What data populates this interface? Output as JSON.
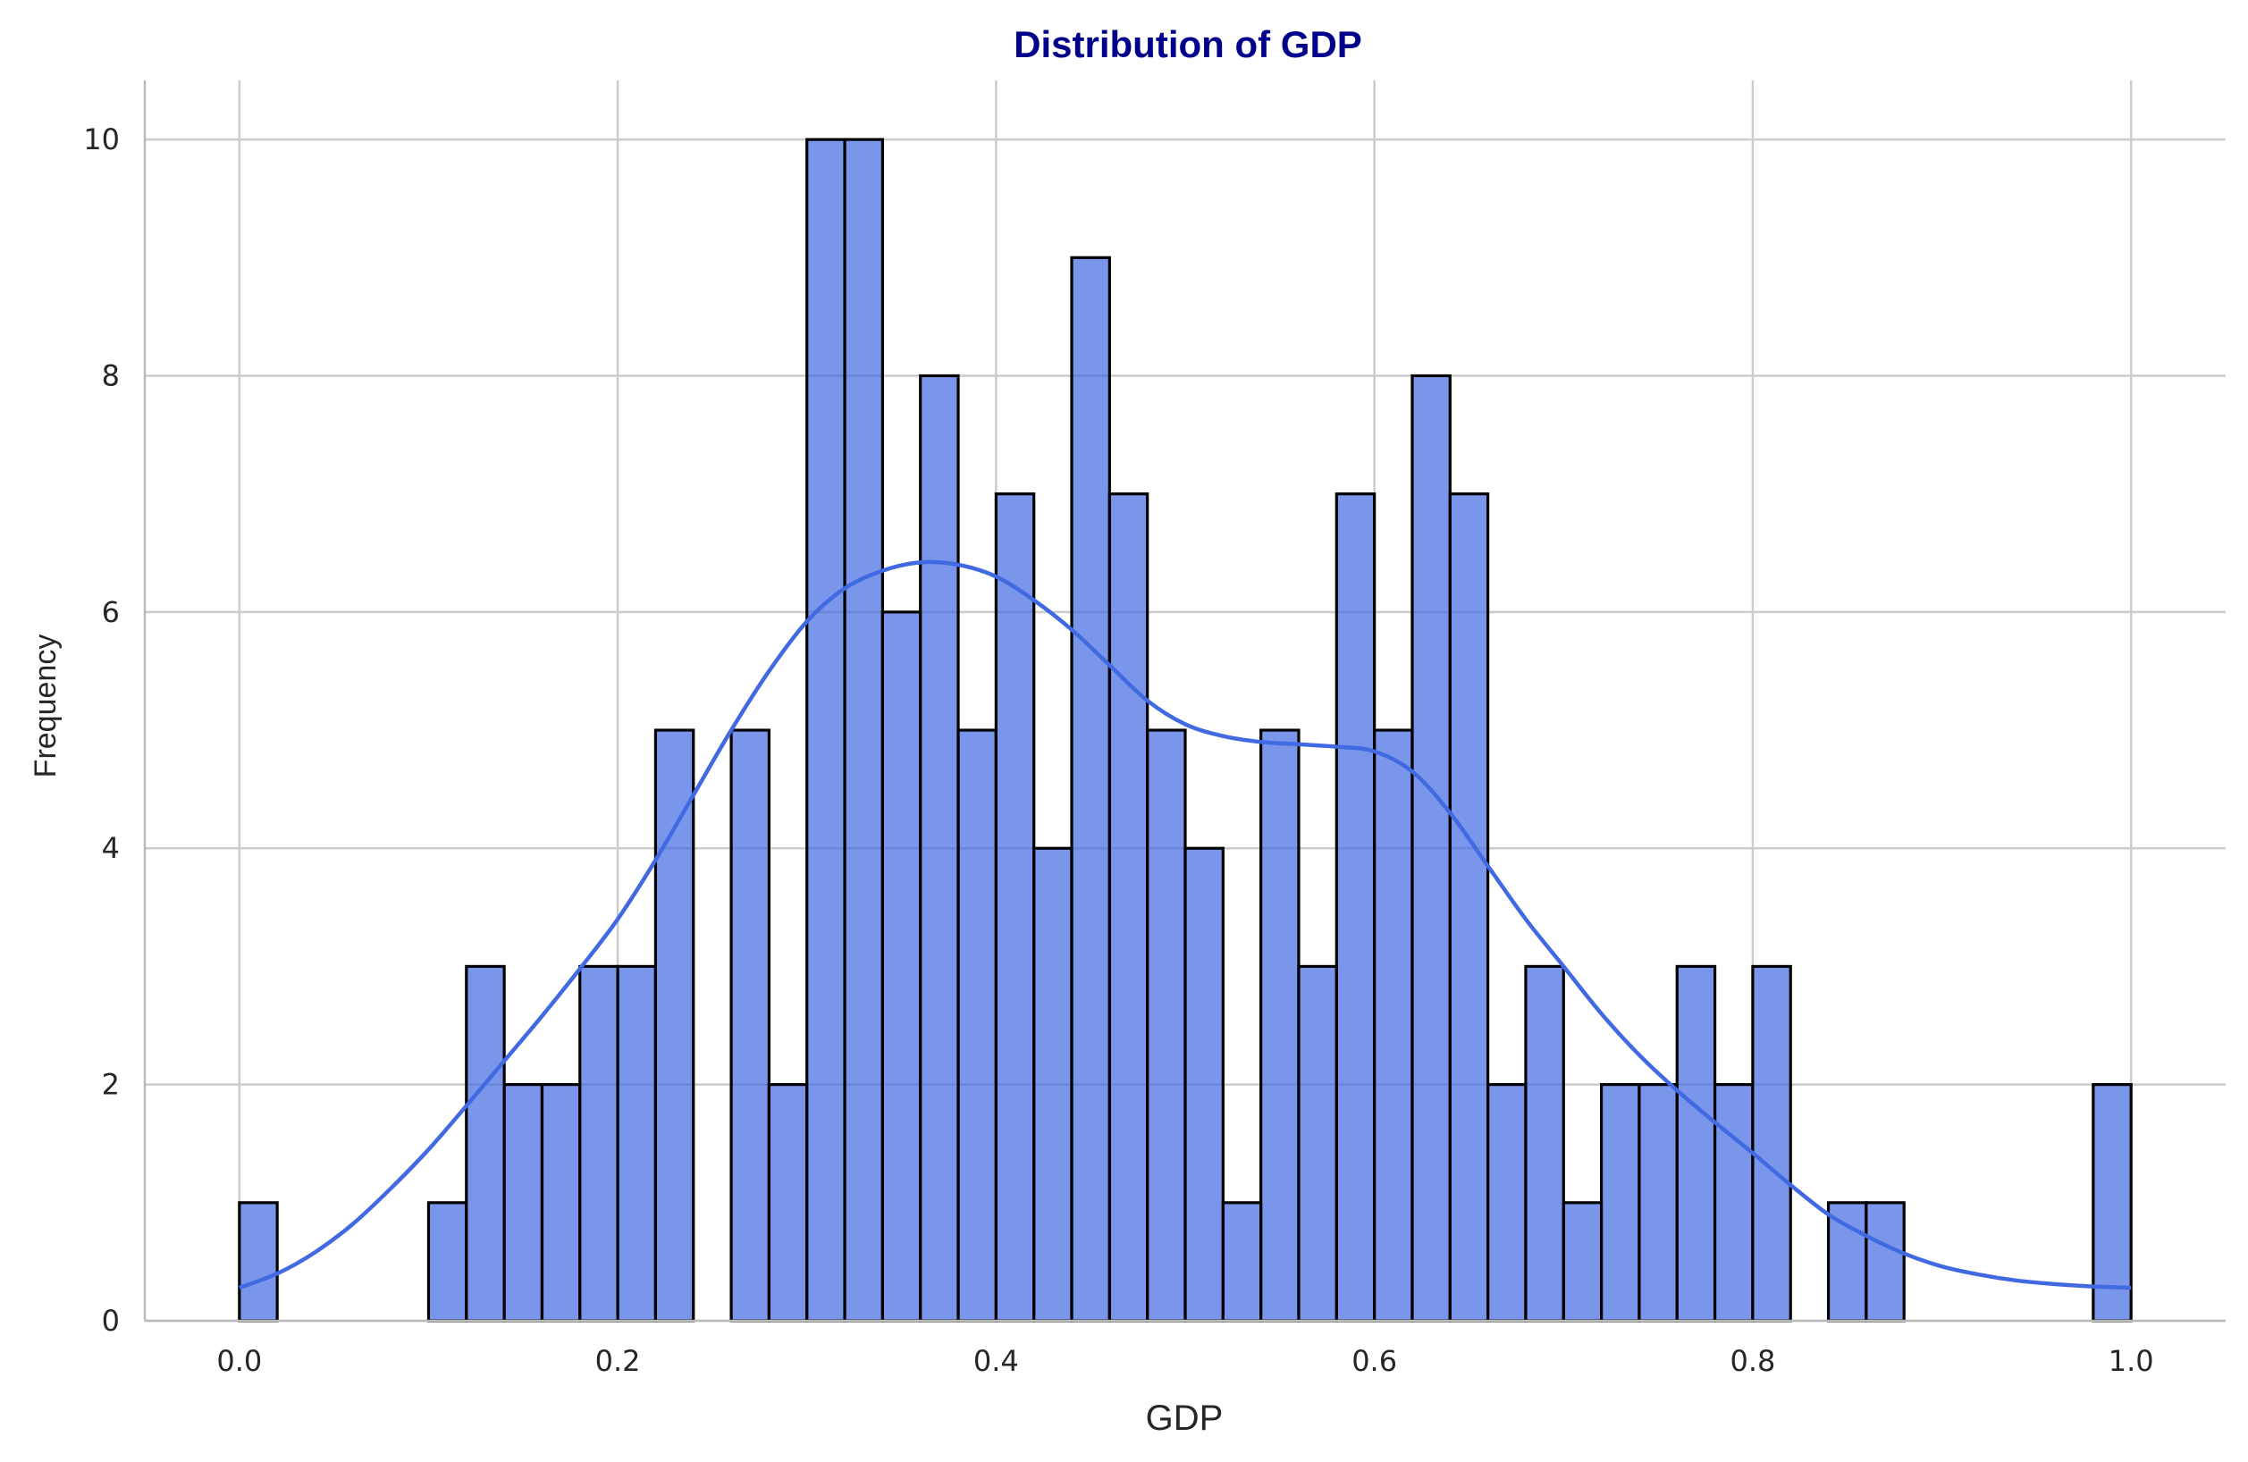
{
  "chart_data": {
    "type": "bar",
    "title": "Distribution of GDP",
    "xlabel": "GDP",
    "ylabel": "Frequency",
    "xlim": [
      -0.05,
      1.05
    ],
    "ylim": [
      0,
      10.5
    ],
    "xticks": [
      "0.0",
      "0.2",
      "0.4",
      "0.6",
      "0.8",
      "1.0"
    ],
    "xtick_values": [
      0,
      0.2,
      0.4,
      0.6,
      0.8,
      1.0
    ],
    "yticks": [
      "0",
      "2",
      "4",
      "6",
      "8",
      "10"
    ],
    "ytick_values": [
      0,
      2,
      4,
      6,
      8,
      10
    ],
    "grid": true,
    "bin_range": [
      0,
      1
    ],
    "bin_count": 50,
    "counts": [
      1,
      0,
      0,
      0,
      0,
      1,
      3,
      2,
      2,
      3,
      3,
      5,
      0,
      5,
      2,
      10,
      10,
      6,
      8,
      5,
      7,
      4,
      9,
      7,
      5,
      4,
      1,
      5,
      3,
      7,
      5,
      8,
      7,
      2,
      3,
      1,
      2,
      2,
      3,
      2,
      3,
      0,
      1,
      1,
      0,
      0,
      0,
      0,
      0,
      2
    ],
    "bar_color": "#4169E1",
    "edge_color": "#000000",
    "kde": {
      "x": [
        0.0,
        0.02,
        0.04,
        0.06,
        0.08,
        0.1,
        0.12,
        0.14,
        0.16,
        0.18,
        0.2,
        0.22,
        0.24,
        0.26,
        0.28,
        0.3,
        0.32,
        0.34,
        0.36,
        0.38,
        0.4,
        0.42,
        0.44,
        0.46,
        0.48,
        0.5,
        0.52,
        0.54,
        0.56,
        0.58,
        0.6,
        0.62,
        0.64,
        0.66,
        0.68,
        0.7,
        0.72,
        0.74,
        0.76,
        0.78,
        0.8,
        0.82,
        0.84,
        0.86,
        0.88,
        0.9,
        0.92,
        0.94,
        0.96,
        0.98,
        1.0
      ],
      "y": [
        0.28,
        0.4,
        0.58,
        0.82,
        1.12,
        1.45,
        1.82,
        2.2,
        2.58,
        2.98,
        3.4,
        3.9,
        4.45,
        5.0,
        5.5,
        5.92,
        6.2,
        6.35,
        6.42,
        6.4,
        6.3,
        6.1,
        5.85,
        5.55,
        5.25,
        5.05,
        4.95,
        4.9,
        4.88,
        4.86,
        4.82,
        4.65,
        4.3,
        3.85,
        3.4,
        3.0,
        2.6,
        2.25,
        1.95,
        1.68,
        1.42,
        1.15,
        0.9,
        0.72,
        0.57,
        0.46,
        0.39,
        0.34,
        0.31,
        0.29,
        0.28
      ],
      "color": "#4169E1"
    }
  }
}
